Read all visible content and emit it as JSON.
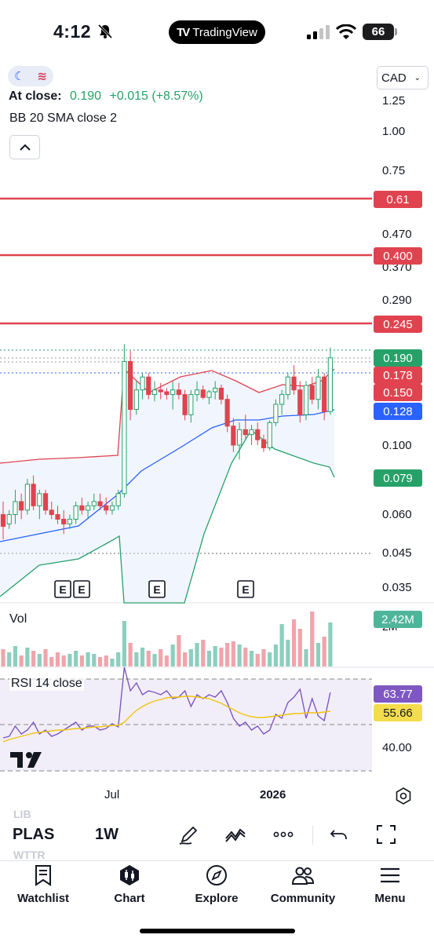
{
  "status_bar": {
    "time": "4:12",
    "app_pill": "TradingView",
    "battery": "66"
  },
  "chart_header": {
    "close_label": "At close:",
    "close_value": "0.190",
    "change": "+0.015 (+8.57%)",
    "indicator_legend": "BB 20 SMA close 2",
    "currency": "CAD"
  },
  "price_axis": [
    "1.25",
    "1.00",
    "0.75",
    "0.470",
    "0.370",
    "0.290",
    "0.100",
    "0.060",
    "0.045",
    "0.035"
  ],
  "price_tags": [
    {
      "label": "0.61",
      "color": "#e0434f"
    },
    {
      "label": "0.400",
      "color": "#e0434f"
    },
    {
      "label": "0.245",
      "color": "#e0434f"
    },
    {
      "label": "0.190",
      "color": "#26a269"
    },
    {
      "label": "0.178",
      "color": "#e0434f"
    },
    {
      "label": "0.150",
      "color": "#e0434f"
    },
    {
      "label": "0.128",
      "color": "#2962ff"
    },
    {
      "label": "0.079",
      "color": "#26a269"
    }
  ],
  "earnings_marker": "E",
  "volume": {
    "label": "Vol",
    "value_tag": "2.42M",
    "axis_label": "2M"
  },
  "rsi": {
    "label": "RSI 14 close",
    "value": "63.77",
    "ma_value": "55.66",
    "axis_label": "40.00"
  },
  "x_axis": [
    "Jul",
    "2026"
  ],
  "toolbar": {
    "symbol": "PLAS",
    "interval": "1W",
    "ghost_above": "LIB",
    "ghost_below": "WTTR"
  },
  "tabs": [
    "Watchlist",
    "Chart",
    "Explore",
    "Community",
    "Menu"
  ],
  "colors": {
    "up": "#26a269",
    "down": "#e0434f",
    "accent": "#2962ff",
    "bb_upper": "#e0434f",
    "bb_lower": "#26a269",
    "bb_basis": "#2962ff",
    "rsi_line": "#7e57c2",
    "rsi_ma": "#f1c40f"
  }
}
